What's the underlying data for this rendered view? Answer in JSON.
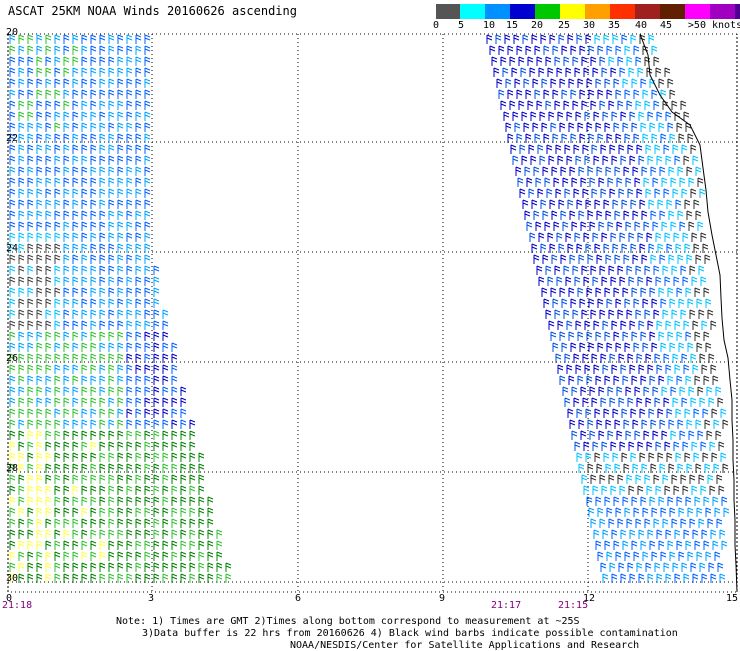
{
  "title": "ASCAT 25KM NOAA Winds 20160626 ascending",
  "legend": {
    "labels": [
      "0",
      "5",
      "10",
      "15",
      "20",
      "25",
      "30",
      "35",
      "40",
      "45",
      ">50 knots"
    ],
    "colors": [
      "#000000",
      "#555555",
      "#999999",
      "#00e5ff",
      "#00a8ff",
      "#0060ff",
      "#0000c8",
      "#00d000",
      "#009000",
      "#008000",
      "#ffff00",
      "#ffd000",
      "#ffa000",
      "#ff6000",
      "#ff0000",
      "#c00000",
      "#803000",
      "#502000",
      "#ff00ff",
      "#d000d0",
      "#a000d0",
      "#7000b0",
      "#400090"
    ]
  },
  "map": {
    "x_ticks": [
      "0",
      "3",
      "6",
      "9",
      "12",
      "15"
    ],
    "y_ticks": [
      "20",
      "22",
      "24",
      "26",
      "28",
      "30"
    ],
    "time_labels": [
      "21:18",
      "21:17",
      "21:15"
    ]
  },
  "notes": {
    "line1": "Note: 1) Times are GMT 2)Times along bottom correspond to measurement at ~25S",
    "line2": "3)Data buffer is 22 hrs from 20160626 4) Black wind barbs indicate possible contamination",
    "line3": "NOAA/NESDIS/Center for Satellite Applications and Research"
  }
}
